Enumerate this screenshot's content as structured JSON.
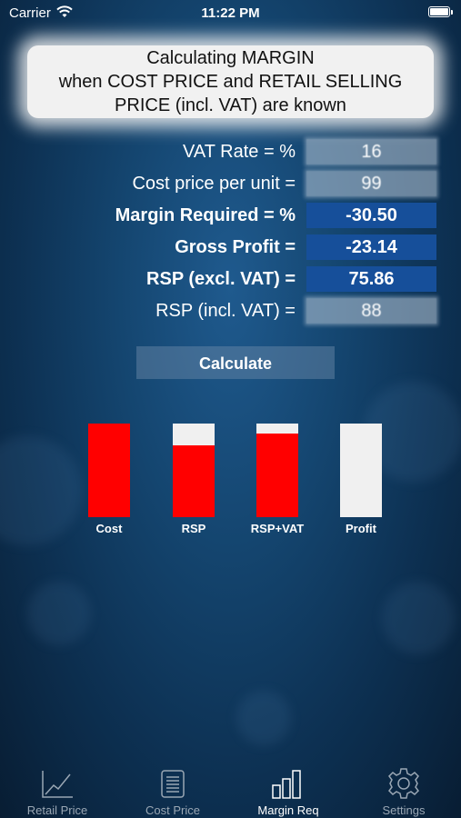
{
  "status": {
    "carrier": "Carrier",
    "time": "11:22 PM"
  },
  "header": {
    "line1": "Calculating MARGIN",
    "line2": "when COST PRICE and RETAIL SELLING",
    "line3": "PRICE (incl. VAT) are known"
  },
  "form": {
    "vat_rate": {
      "label": "VAT Rate = %",
      "value": "16"
    },
    "cost_price": {
      "label": "Cost price per unit =",
      "value": "99"
    },
    "margin_required": {
      "label": "Margin Required = %",
      "value": "-30.50"
    },
    "gross_profit": {
      "label": "Gross Profit =",
      "value": "-23.14"
    },
    "rsp_excl": {
      "label": "RSP (excl. VAT) =",
      "value": "75.86"
    },
    "rsp_incl": {
      "label": "RSP (incl. VAT) =",
      "value": "88"
    }
  },
  "calculate_label": "Calculate",
  "chart_data": {
    "type": "bar",
    "categories": [
      "Cost",
      "RSP",
      "RSP+VAT",
      "Profit"
    ],
    "values": [
      1.0,
      0.766,
      0.889,
      0.0
    ],
    "colors": {
      "filled": "#ff0000",
      "empty": "#f0f0f0"
    }
  },
  "tabs": [
    {
      "label": "Retail Price",
      "icon": "line-chart-icon",
      "active": false
    },
    {
      "label": "Cost Price",
      "icon": "receipt-icon",
      "active": false
    },
    {
      "label": "Margin Req",
      "icon": "bar-chart-icon",
      "active": true
    },
    {
      "label": "Settings",
      "icon": "gear-icon",
      "active": false
    }
  ]
}
